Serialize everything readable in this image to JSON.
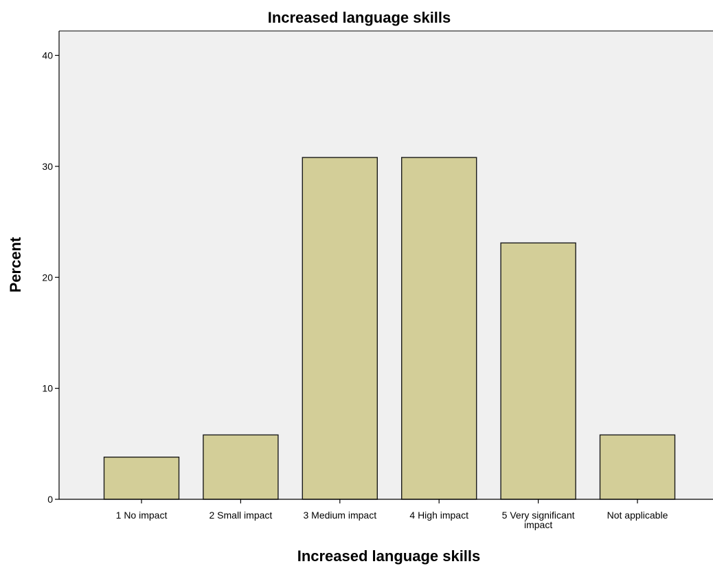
{
  "chart_data": {
    "type": "bar",
    "title": "Increased language skills",
    "xlabel": "Increased language skills",
    "ylabel": "Percent",
    "categories": [
      [
        "1  No impact"
      ],
      [
        "2  Small impact"
      ],
      [
        "3  Medium impact"
      ],
      [
        "4  High impact"
      ],
      [
        "5 Very significant",
        "impact"
      ],
      [
        "Not applicable"
      ]
    ],
    "values": [
      3.8,
      5.8,
      30.8,
      30.8,
      23.1,
      5.8
    ],
    "ylim": [
      0,
      42.2
    ],
    "yticks": [
      "0",
      "10",
      "20",
      "30",
      "40"
    ],
    "grid": false,
    "legend": "none",
    "colors": {
      "bar_fill": "#d3ce98",
      "bar_stroke": "#1a1a1a",
      "plot_bg": "#f0f0f0",
      "axis": "#000000"
    }
  }
}
